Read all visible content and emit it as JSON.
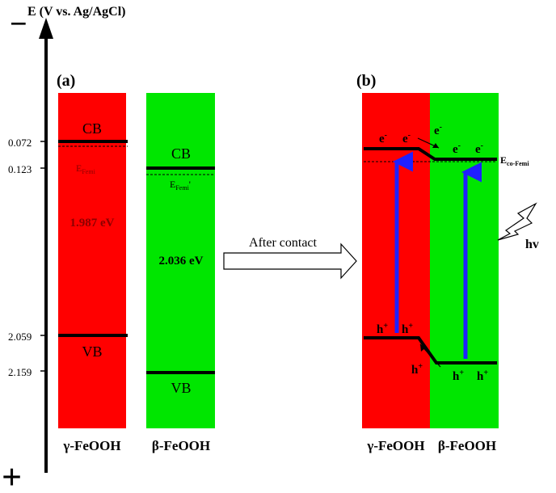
{
  "axis": {
    "label": "E (V vs. Ag/AgCl)",
    "minus_sign": "−",
    "plus_sign": "+",
    "ticks": [
      "0.072",
      "0.123",
      "2.059",
      "2.159"
    ]
  },
  "panel_a": {
    "label": "(a)",
    "gamma": {
      "name": "γ-FeOOH",
      "cb": "CB",
      "vb": "VB",
      "fermi_base": "E",
      "fermi_sub": "Femi",
      "gap": "1.987 eV",
      "color": "#ff0000"
    },
    "beta": {
      "name": "β-FeOOH",
      "cb": "CB",
      "vb": "VB",
      "fermi_base": "E",
      "fermi_sub": "Femi",
      "fermi_prime": "'",
      "gap": "2.036 eV",
      "color": "#00e600"
    }
  },
  "arrow_label": "After contact",
  "panel_b": {
    "label": "(b)",
    "gamma_name": "γ-FeOOH",
    "beta_name": "β-FeOOH",
    "fermi_base": "E",
    "fermi_sub": "co-Femi",
    "light": "hv",
    "electron_base": "e",
    "electron_sup": "-",
    "hole_base": "h",
    "hole_sup": "+",
    "arrow_color": "#2020ff"
  }
}
